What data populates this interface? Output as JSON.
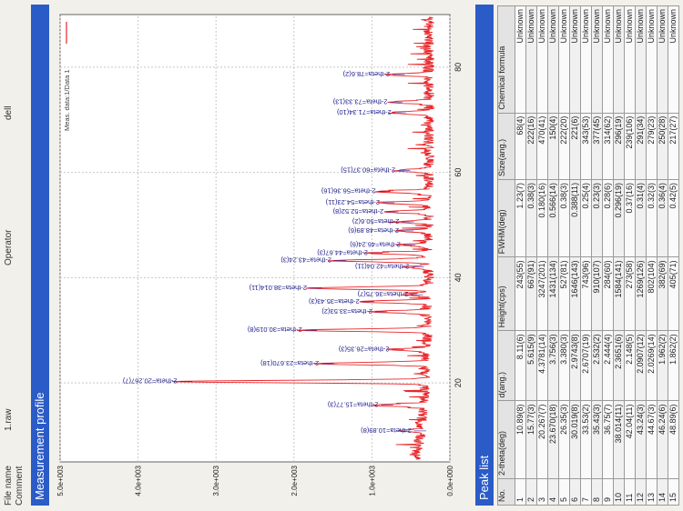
{
  "header": {
    "file_name_label": "File name",
    "file_name_value": "1.raw",
    "comment_label": "Comment",
    "operator_label": "Operator",
    "operator_value": "dell"
  },
  "sections": {
    "profile_title": "Measurement profile",
    "peaks_title": "Peak list"
  },
  "chart_data": {
    "type": "line",
    "xlim": [
      5,
      90
    ],
    "ylim": [
      0,
      5000
    ],
    "xticks": [
      20,
      40,
      60,
      80
    ],
    "yticks": [
      "0.0e+000",
      "1.0e+003",
      "2.0e+003",
      "3.0e+003",
      "4.0e+003",
      "5.0e+003"
    ],
    "ytick_values": [
      0,
      1000,
      2000,
      3000,
      4000,
      5000
    ],
    "grid": true,
    "legend": {
      "label": "Meas. data:1/Data 1",
      "placement": "top-right"
    },
    "series_color": "#e8262a",
    "peaks": [
      {
        "x": 10.89,
        "h": 243,
        "label": "2-theta=10.89(8)"
      },
      {
        "x": 15.77,
        "h": 667,
        "label": "2-theta=15.77(3)"
      },
      {
        "x": 20.267,
        "h": 3247,
        "label": "2-theta=20.267(7)"
      },
      {
        "x": 23.67,
        "h": 1431,
        "label": "2-theta=23.670(18)"
      },
      {
        "x": 26.35,
        "h": 527,
        "label": "2-theta=26.35(3)"
      },
      {
        "x": 30.019,
        "h": 1646,
        "label": "2-theta=30.019(8)"
      },
      {
        "x": 33.53,
        "h": 743,
        "label": "2-theta=33.53(2)"
      },
      {
        "x": 35.43,
        "h": 910,
        "label": "2-theta=35.43(3)"
      },
      {
        "x": 36.75,
        "h": 284,
        "label": "2-theta=36.75(7)"
      },
      {
        "x": 38.014,
        "h": 1584,
        "label": "2-theta=38.014(11)"
      },
      {
        "x": 42.04,
        "h": 273,
        "label": "2-theta=42.04(11)"
      },
      {
        "x": 43.24,
        "h": 1269,
        "label": "2-theta=43.24(3)"
      },
      {
        "x": 44.67,
        "h": 802,
        "label": "2-theta=44.67(3)"
      },
      {
        "x": 46.24,
        "h": 382,
        "label": "2-theta=46.24(6)"
      },
      {
        "x": 48.89,
        "h": 405,
        "label": "2-theta=48.89(6)"
      },
      {
        "x": 50.6,
        "h": 400,
        "label": "2-theta=50.6(2)"
      },
      {
        "x": 52.52,
        "h": 600,
        "label": "2-theta=52.52(8)"
      },
      {
        "x": 54.23,
        "h": 650,
        "label": "2-theta=54.23(11)"
      },
      {
        "x": 56.36,
        "h": 700,
        "label": "2-theta=56.36(16)"
      },
      {
        "x": 60.37,
        "h": 450,
        "label": "2-theta=60.37(15)"
      },
      {
        "x": 71.34,
        "h": 500,
        "label": "2-theta=71.34(10)"
      },
      {
        "x": 73.33,
        "h": 550,
        "label": "2-theta=73.33(13)"
      },
      {
        "x": 78.6,
        "h": 520,
        "label": "2-theta=78.6(2)"
      }
    ]
  },
  "peak_table": {
    "columns": [
      "No.",
      "2-theta(deg)",
      "d(ang.)",
      "Height(cps)",
      "FWHM(deg)",
      "Size(ang.)",
      "Chemical formula"
    ],
    "rows": [
      [
        "1",
        "10.89(8)",
        "8.11(6)",
        "243(55)",
        "1.23(7)",
        "68(4)",
        "Unknown"
      ],
      [
        "2",
        "15.77(3)",
        "5.615(9)",
        "667(91)",
        "0.38(3)",
        "222(16)",
        "Unknown"
      ],
      [
        "3",
        "20.267(7)",
        "4.3781(14)",
        "3247(201)",
        "0.180(16)",
        "470(41)",
        "Unknown"
      ],
      [
        "4",
        "23.670(18)",
        "3.756(3)",
        "1431(134)",
        "0.566(14)",
        "150(4)",
        "Unknown"
      ],
      [
        "5",
        "26.35(3)",
        "3.380(3)",
        "527(81)",
        "0.38(3)",
        "222(20)",
        "Unknown"
      ],
      [
        "6",
        "30.019(8)",
        "2.9743(8)",
        "1646(143)",
        "0.388(11)",
        "221(6)",
        "Unknown"
      ],
      [
        "7",
        "33.53(2)",
        "2.6707(19)",
        "743(96)",
        "0.25(4)",
        "343(53)",
        "Unknown"
      ],
      [
        "8",
        "35.43(3)",
        "2.532(2)",
        "910(107)",
        "0.23(3)",
        "377(45)",
        "Unknown"
      ],
      [
        "9",
        "36.75(7)",
        "2.444(4)",
        "284(60)",
        "0.28(6)",
        "314(62)",
        "Unknown"
      ],
      [
        "10",
        "38.014(11)",
        "2.3651(6)",
        "1584(141)",
        "0.296(19)",
        "296(19)",
        "Unknown"
      ],
      [
        "11",
        "42.04(11)",
        "2.148(5)",
        "273(58)",
        "0.37(16)",
        "239(106)",
        "Unknown"
      ],
      [
        "12",
        "43.24(3)",
        "2.0907(12)",
        "1269(126)",
        "0.31(4)",
        "291(34)",
        "Unknown"
      ],
      [
        "13",
        "44.67(3)",
        "2.0269(14)",
        "802(104)",
        "0.32(3)",
        "279(23)",
        "Unknown"
      ],
      [
        "14",
        "46.24(6)",
        "1.962(2)",
        "382(69)",
        "0.36(4)",
        "250(28)",
        "Unknown"
      ],
      [
        "15",
        "48.89(6)",
        "1.862(2)",
        "405(71)",
        "0.42(5)",
        "217(27)",
        "Unknown"
      ]
    ]
  }
}
